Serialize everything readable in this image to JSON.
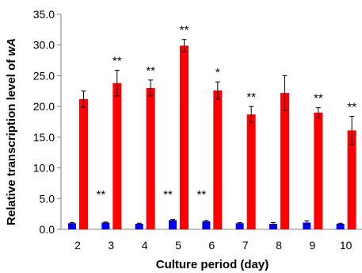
{
  "chart_data": {
    "type": "bar",
    "xlabel": "Culture period (day)",
    "ylabel_prefix": "Relative transcription level of ",
    "ylabel_italic": "wA",
    "ylim": [
      0,
      35
    ],
    "yticks": [
      "0.0",
      "5.0",
      "10.0",
      "15.0",
      "20.0",
      "25.0",
      "30.0",
      "35.0"
    ],
    "grid": false,
    "categories": [
      "2",
      "3",
      "4",
      "5",
      "6",
      "7",
      "8",
      "9",
      "10"
    ],
    "series": [
      {
        "color": "#0000ff",
        "values": [
          1.0,
          1.1,
          0.9,
          1.5,
          1.3,
          1.0,
          0.9,
          1.1,
          0.9
        ],
        "errors": [
          0.1,
          0.1,
          0.1,
          0.1,
          0.15,
          0.1,
          0.2,
          0.3,
          0.1
        ],
        "annotations": [
          "",
          "**",
          "",
          "**",
          "**",
          "",
          "",
          "",
          ""
        ]
      },
      {
        "color": "#ff0000",
        "values": [
          21.2,
          23.8,
          23.0,
          29.9,
          22.6,
          18.7,
          22.2,
          19.0,
          16.1
        ],
        "errors": [
          1.3,
          2.1,
          1.3,
          1.0,
          1.4,
          1.3,
          2.8,
          0.8,
          2.3
        ],
        "annotations": [
          "",
          "**",
          "**",
          "**",
          "*",
          "**",
          "",
          "**",
          "**"
        ]
      }
    ]
  }
}
